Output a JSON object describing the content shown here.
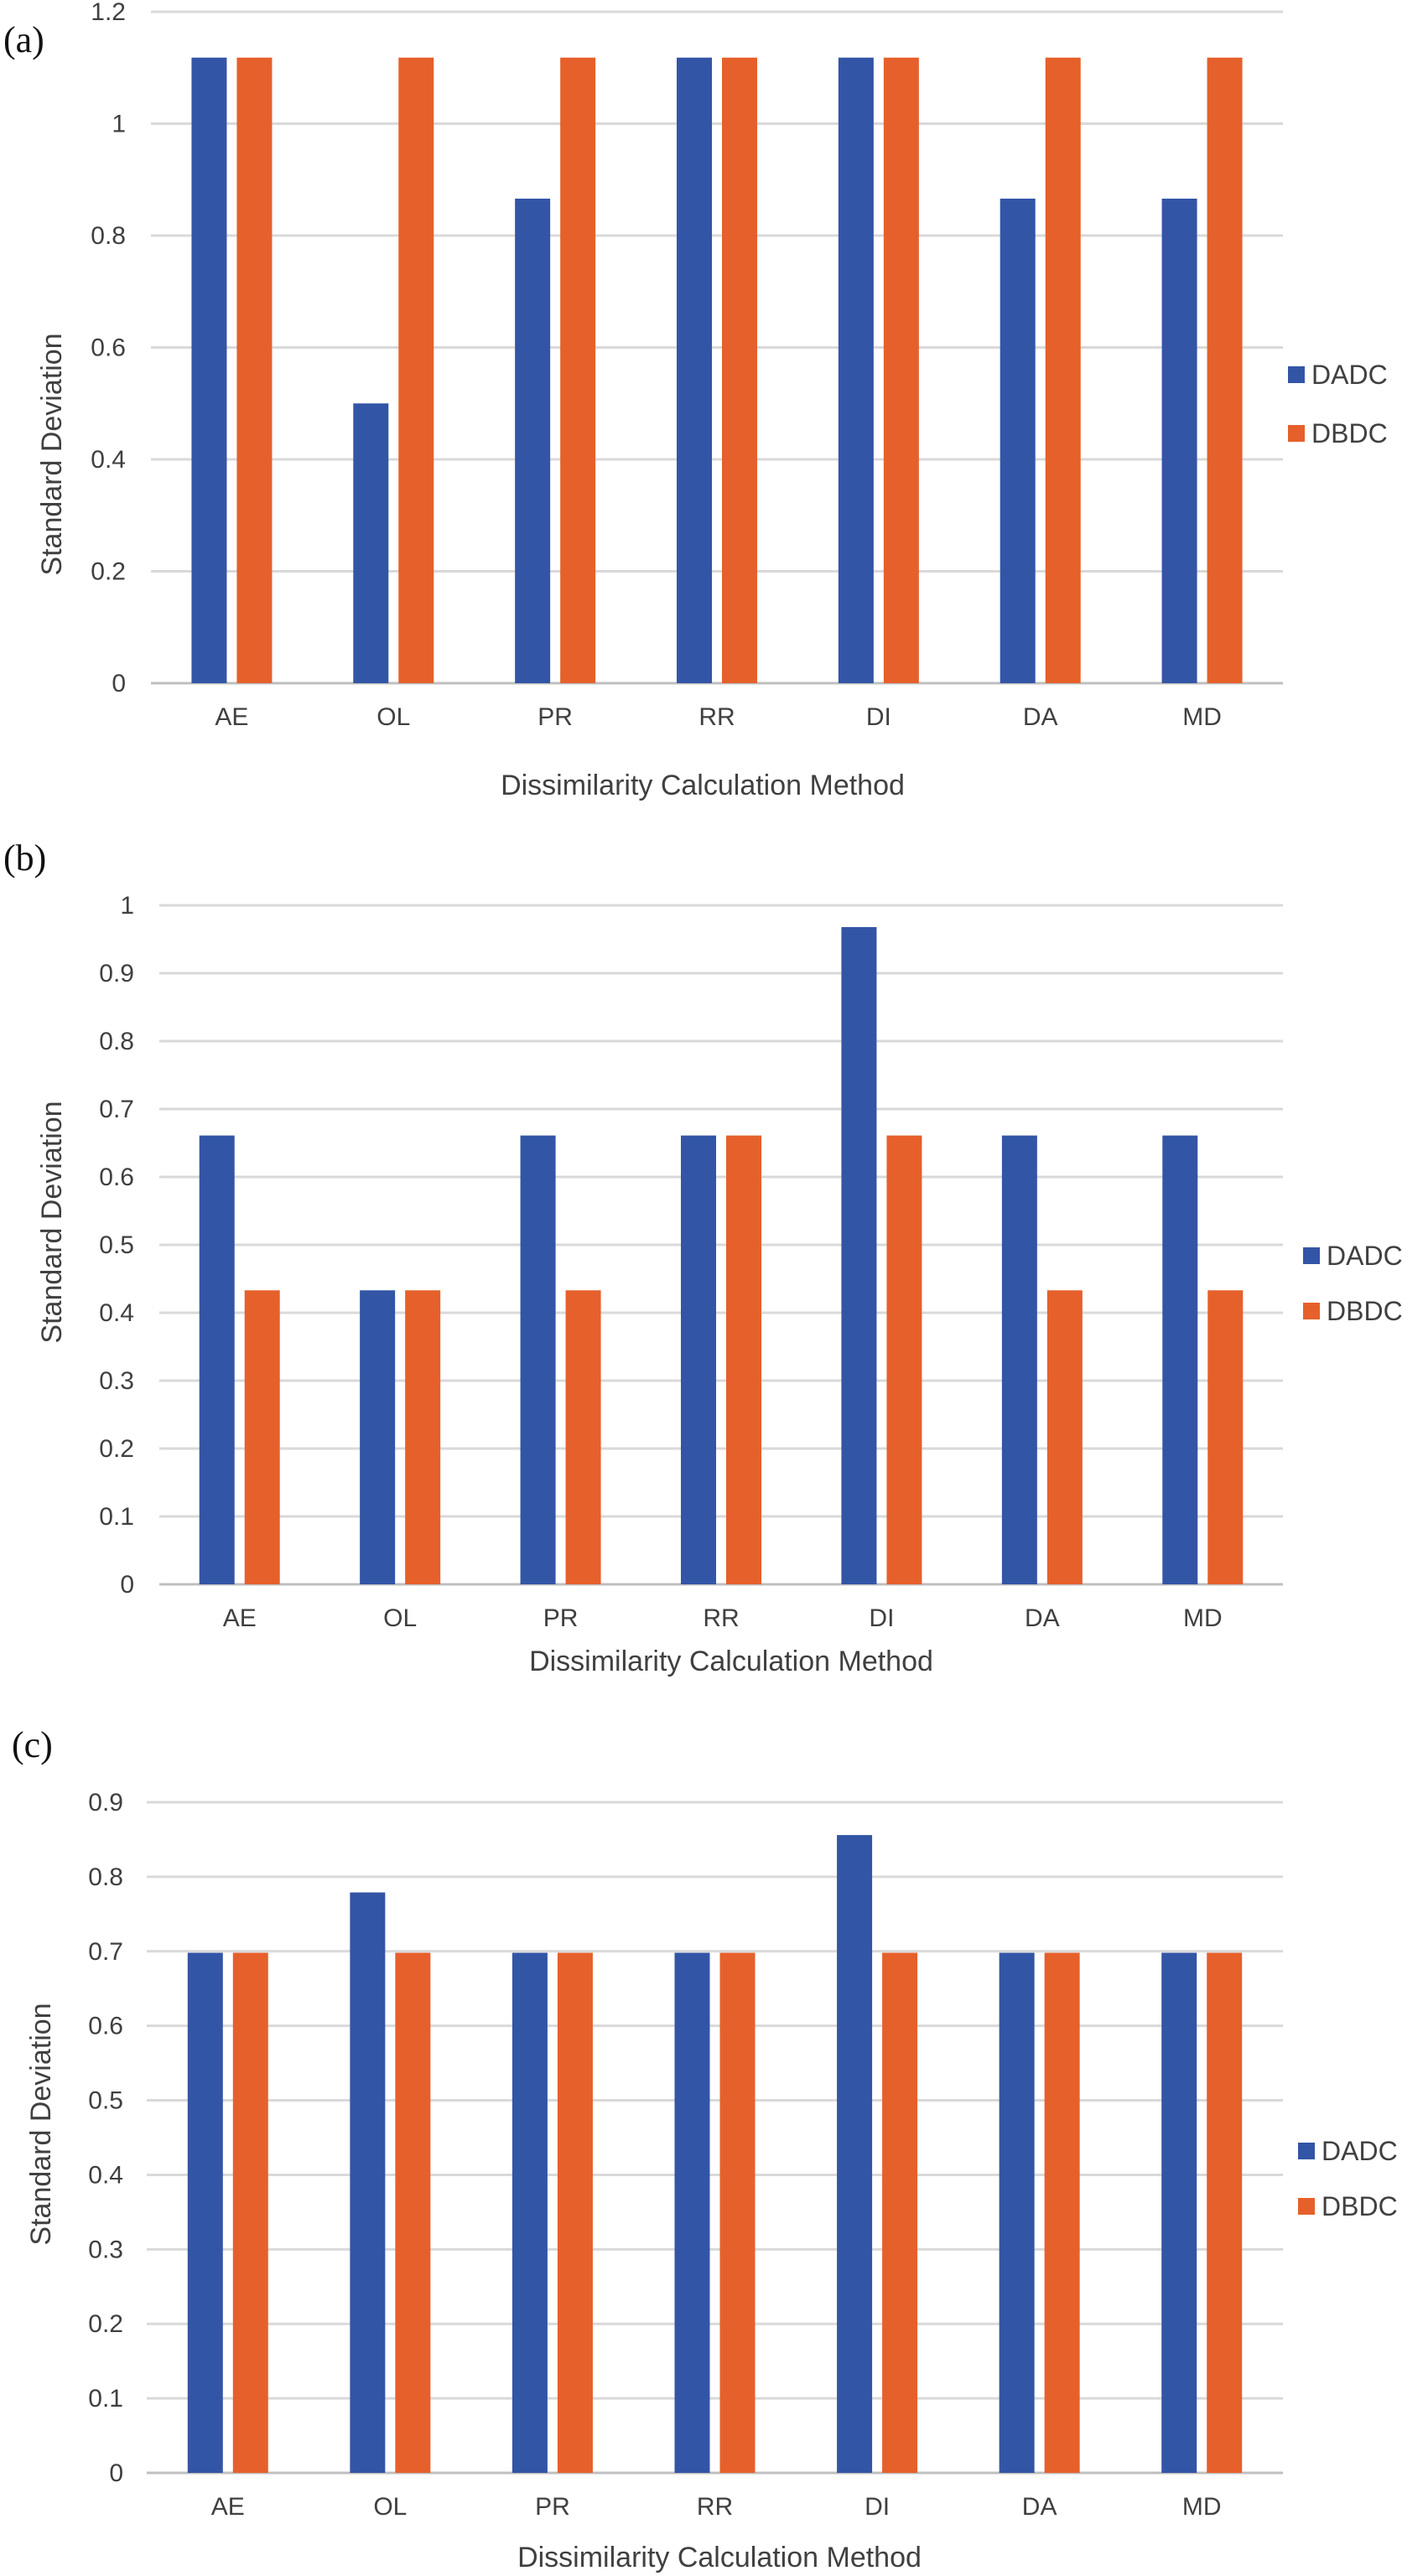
{
  "colors": {
    "DADC": "#3355a6",
    "DBDC": "#e6602b"
  },
  "chart_data": [
    {
      "type": "bar",
      "panel_label": "(a)",
      "categories": [
        "AE",
        "OL",
        "PR",
        "RR",
        "DI",
        "DA",
        "MD"
      ],
      "series": [
        {
          "name": "DADC",
          "values": [
            1.118,
            0.5,
            0.866,
            1.118,
            1.118,
            0.866,
            0.866
          ]
        },
        {
          "name": "DBDC",
          "values": [
            1.118,
            1.118,
            1.118,
            1.118,
            1.118,
            1.118,
            1.118
          ]
        }
      ],
      "xlabel": "Dissimilarity Calculation Method",
      "ylabel": "Standard Deviation",
      "ylim": [
        0,
        1.2
      ],
      "yticks": [
        0,
        0.2,
        0.4,
        0.6,
        0.8,
        1,
        1.2
      ],
      "ytick_labels": [
        "0",
        "0.2",
        "0.4",
        "0.6",
        "0.8",
        "1",
        "1.2"
      ],
      "grid": true,
      "legend": "right"
    },
    {
      "type": "bar",
      "panel_label": "(b)",
      "categories": [
        "AE",
        "OL",
        "PR",
        "RR",
        "DI",
        "DA",
        "MD"
      ],
      "series": [
        {
          "name": "DADC",
          "values": [
            0.661,
            0.433,
            0.661,
            0.661,
            0.968,
            0.661,
            0.661
          ]
        },
        {
          "name": "DBDC",
          "values": [
            0.433,
            0.433,
            0.433,
            0.661,
            0.661,
            0.433,
            0.433
          ]
        }
      ],
      "xlabel": "Dissimilarity Calculation Method",
      "ylabel": "Standard Deviation",
      "ylim": [
        0,
        1
      ],
      "yticks": [
        0,
        0.1,
        0.2,
        0.3,
        0.4,
        0.5,
        0.6,
        0.7,
        0.8,
        0.9,
        1
      ],
      "ytick_labels": [
        "0",
        "0.1",
        "0.2",
        "0.3",
        "0.4",
        "0.5",
        "0.6",
        "0.7",
        "0.8",
        "0.9",
        "1"
      ],
      "grid": true,
      "legend": "right"
    },
    {
      "type": "bar",
      "panel_label": "(c)",
      "categories": [
        "AE",
        "OL",
        "PR",
        "RR",
        "DI",
        "DA",
        "MD"
      ],
      "series": [
        {
          "name": "DADC",
          "values": [
            0.698,
            0.779,
            0.698,
            0.698,
            0.856,
            0.698,
            0.698
          ]
        },
        {
          "name": "DBDC",
          "values": [
            0.698,
            0.698,
            0.698,
            0.698,
            0.698,
            0.698,
            0.698
          ]
        }
      ],
      "xlabel": "Dissimilarity Calculation Method",
      "ylabel": "Standard Deviation",
      "ylim": [
        0,
        0.9
      ],
      "yticks": [
        0,
        0.1,
        0.2,
        0.3,
        0.4,
        0.5,
        0.6,
        0.7,
        0.8,
        0.9
      ],
      "ytick_labels": [
        "0",
        "0.1",
        "0.2",
        "0.3",
        "0.4",
        "0.5",
        "0.6",
        "0.7",
        "0.8",
        "0.9"
      ],
      "grid": true,
      "legend": "right"
    }
  ]
}
